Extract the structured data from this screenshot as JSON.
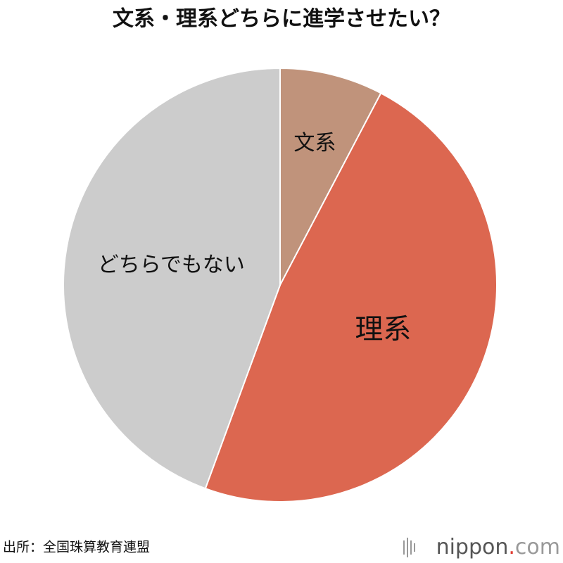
{
  "chart_data": {
    "type": "pie",
    "title": "文系・理系どちらに進学させたい？",
    "categories": [
      "文系",
      "理系",
      "どちらでもない"
    ],
    "values": [
      7.7,
      47.9,
      44.4
    ],
    "colors": [
      "#c0937b",
      "#dc6750",
      "#cccccc"
    ],
    "start_angle": 0,
    "direction": "clockwise"
  },
  "source": "出所：全国珠算教育連盟",
  "logo": {
    "name": "nippon",
    "dot": ".",
    "domain": "com"
  }
}
